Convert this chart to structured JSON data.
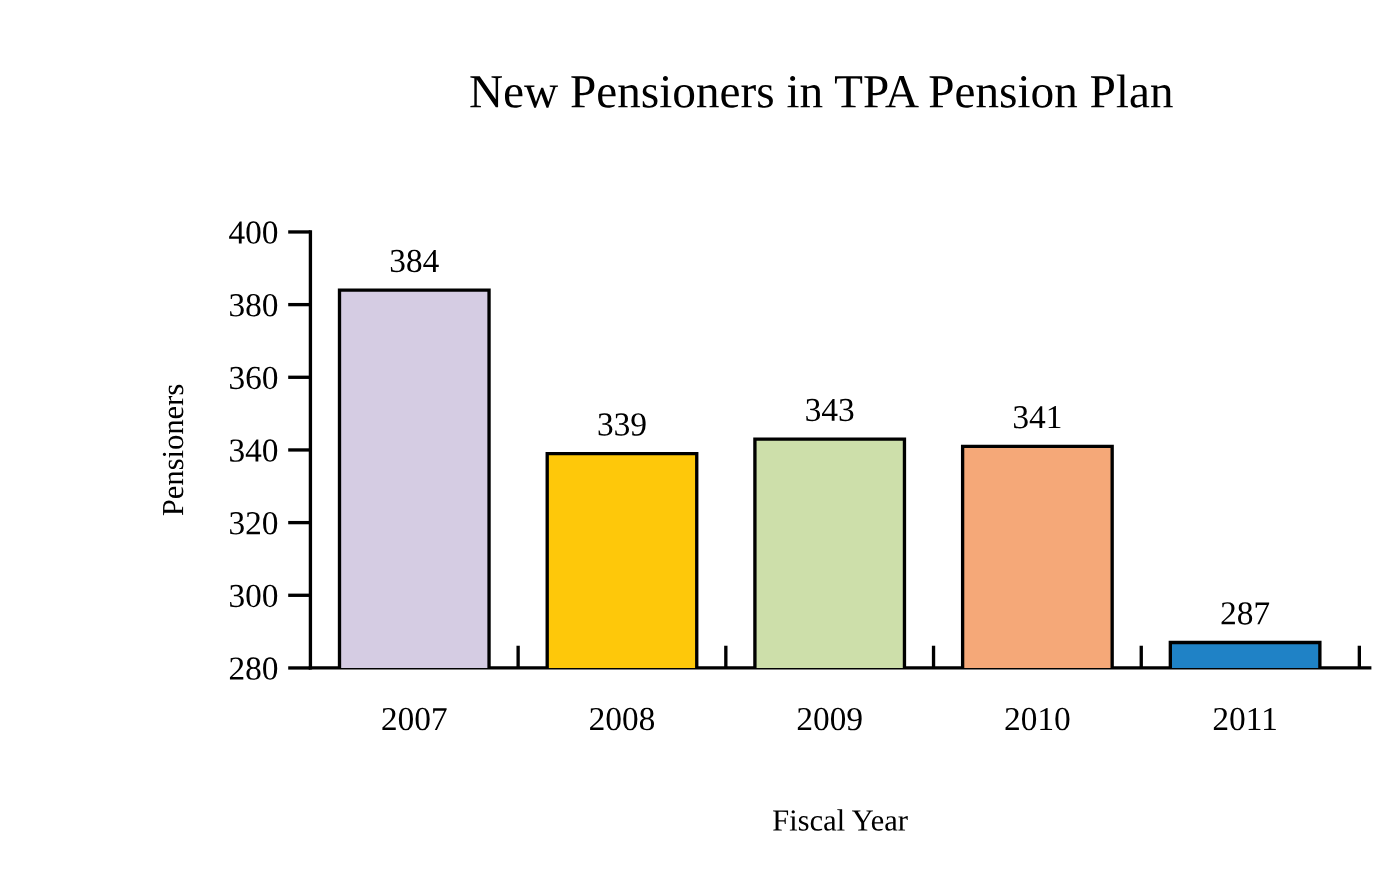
{
  "chart_data": {
    "type": "bar",
    "title": "New Pensioners in TPA Pension Plan",
    "xlabel": "Fiscal Year",
    "ylabel": "Pensioners",
    "categories": [
      "2007",
      "2008",
      "2009",
      "2010",
      "2011"
    ],
    "values": [
      384,
      339,
      343,
      341,
      287
    ],
    "colors": [
      "#d5cce3",
      "#fec80a",
      "#cddfaa",
      "#f5a878",
      "#1f82c6"
    ],
    "ylim": [
      280,
      400
    ],
    "yticks": [
      280,
      300,
      320,
      340,
      360,
      380,
      400
    ],
    "data_labels": true,
    "grid": false,
    "legend": false
  }
}
